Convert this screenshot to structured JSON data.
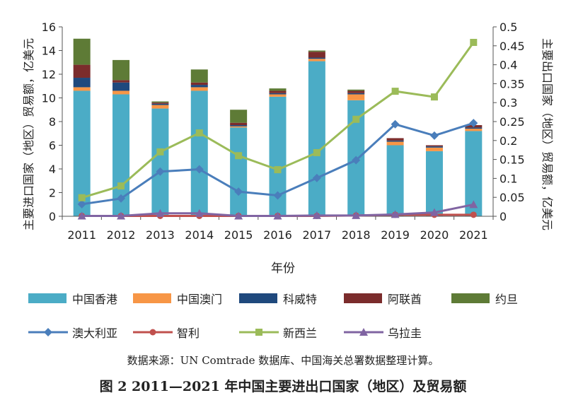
{
  "chart_data": {
    "type": "bar",
    "stacked": true,
    "xlabel": "年份",
    "ylabel_left": "主要进口国家（地区）贸易额，亿美元",
    "ylabel_right": "主要出口国家（地区）贸易额，亿美元",
    "categories": [
      "2011",
      "2012",
      "2013",
      "2014",
      "2015",
      "2016",
      "2017",
      "2018",
      "2019",
      "2020",
      "2021"
    ],
    "ylim_left": [
      0,
      16
    ],
    "yticks_left": [
      "0",
      "2",
      "4",
      "6",
      "8",
      "10",
      "12",
      "14",
      "16"
    ],
    "ylim_right": [
      0,
      0.5
    ],
    "yticks_right": [
      "0",
      "0.05",
      "0.1",
      "0.15",
      "0.2",
      "0.25",
      "0.3",
      "0.35",
      "0.4",
      "0.45",
      "0.5"
    ],
    "bar_series": [
      {
        "name": "中国香港",
        "color": "#4BACC6",
        "values": [
          10.6,
          10.3,
          9.1,
          10.6,
          7.5,
          10.1,
          13.1,
          9.8,
          6.0,
          5.5,
          7.2
        ]
      },
      {
        "name": "中国澳门",
        "color": "#F79646",
        "values": [
          0.3,
          0.3,
          0.3,
          0.3,
          0.1,
          0.2,
          0.2,
          0.5,
          0.3,
          0.3,
          0.2
        ]
      },
      {
        "name": "科威特",
        "color": "#1F497D",
        "values": [
          0.8,
          0.7,
          0.1,
          0.2,
          0.1,
          0.1,
          0.1,
          0.1,
          0.1,
          0.1,
          0.1
        ]
      },
      {
        "name": "阿联酋",
        "color": "#7B2C2C",
        "values": [
          1.1,
          0.2,
          0.1,
          0.2,
          0.2,
          0.2,
          0.5,
          0.2,
          0.2,
          0.1,
          0.2
        ]
      },
      {
        "name": "约旦",
        "color": "#5E7B36",
        "values": [
          2.2,
          1.7,
          0.1,
          1.1,
          1.1,
          0.2,
          0.1,
          0.1,
          0.0,
          0.0,
          0.0
        ]
      }
    ],
    "line_series": [
      {
        "name": "澳大利亚",
        "color": "#4A7EBB",
        "marker": "diamond",
        "values": [
          0.032,
          0.047,
          0.118,
          0.124,
          0.065,
          0.055,
          0.101,
          0.148,
          0.243,
          0.213,
          0.246
        ]
      },
      {
        "name": "智利",
        "color": "#C0504D",
        "marker": "circle",
        "values": [
          0.001,
          0.001,
          0.001,
          0.001,
          0.001,
          0.001,
          0.001,
          0.002,
          0.004,
          0.004,
          0.004
        ]
      },
      {
        "name": "新西兰",
        "color": "#9BBB59",
        "marker": "square",
        "values": [
          0.049,
          0.08,
          0.17,
          0.22,
          0.16,
          0.123,
          0.168,
          0.256,
          0.33,
          0.315,
          0.459
        ]
      },
      {
        "name": "乌拉圭",
        "color": "#8064A2",
        "marker": "triangle",
        "values": [
          0.001,
          0.001,
          0.008,
          0.008,
          0.001,
          0.001,
          0.002,
          0.002,
          0.005,
          0.01,
          0.031
        ]
      }
    ]
  },
  "source_note": "数据来源：UN Comtrade 数据库、中国海关总署数据整理计算。",
  "caption": "图 2  2011—2021 年中国主要进出口国家（地区）及贸易额"
}
